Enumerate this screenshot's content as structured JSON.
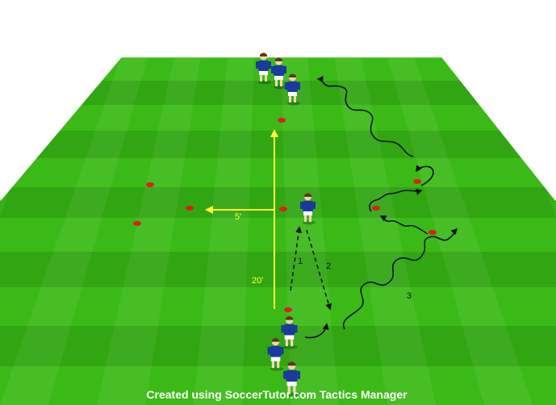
{
  "field": {
    "colors": {
      "grass_light": "#3fc21a",
      "grass_dark": "#2e9e10",
      "line": "#ffffff",
      "measure": "#ffff33",
      "cone": "#e31b1b",
      "kit": "#1a3a9e",
      "movement": "#111111"
    }
  },
  "labels": {
    "width_label": "5'",
    "length_label": "20'",
    "run_1": "1",
    "run_2": "2",
    "run_3": "3"
  },
  "credit": "Created using SoccerTutor.com Tactics Manager"
}
